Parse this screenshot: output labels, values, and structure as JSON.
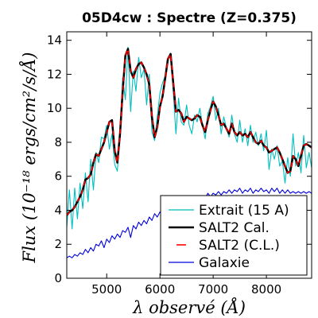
{
  "chart_data": {
    "type": "line",
    "title": "05D4cw : Spectre (Z=0.375)",
    "xlabel": "λ observé (Å)",
    "ylabel": "Flux (10⁻¹⁸ ergs/cm²/s/Å)",
    "xlim": [
      4250,
      8850
    ],
    "ylim": [
      0,
      14.5
    ],
    "xticks": [
      5000,
      6000,
      7000,
      8000
    ],
    "yticks": [
      0,
      2,
      4,
      6,
      8,
      10,
      12,
      14
    ],
    "grid": false,
    "legend_position": "bottom-right",
    "series": [
      {
        "name": "Extrait (15 A)",
        "color": "#00bfbf",
        "style": "solid",
        "x": [
          4250,
          4300,
          4350,
          4400,
          4450,
          4500,
          4550,
          4600,
          4650,
          4700,
          4750,
          4800,
          4850,
          4900,
          4950,
          5000,
          5050,
          5100,
          5150,
          5200,
          5250,
          5300,
          5350,
          5400,
          5450,
          5500,
          5550,
          5600,
          5650,
          5700,
          5750,
          5800,
          5850,
          5900,
          5950,
          6000,
          6050,
          6100,
          6150,
          6200,
          6250,
          6300,
          6350,
          6400,
          6450,
          6500,
          6550,
          6600,
          6650,
          6700,
          6750,
          6800,
          6850,
          6900,
          6950,
          7000,
          7050,
          7100,
          7150,
          7200,
          7250,
          7300,
          7350,
          7400,
          7450,
          7500,
          7550,
          7600,
          7650,
          7700,
          7750,
          7800,
          7850,
          7900,
          7950,
          8000,
          8050,
          8100,
          8150,
          8200,
          8250,
          8300,
          8350,
          8400,
          8450,
          8500,
          8550,
          8600,
          8650,
          8700,
          8750,
          8800,
          8850
        ],
        "y": [
          3.0,
          5.2,
          2.9,
          5.3,
          3.5,
          5.6,
          4.1,
          6.2,
          4.5,
          7.0,
          5.2,
          7.4,
          6.8,
          8.3,
          8.2,
          9.0,
          7.6,
          8.5,
          6.7,
          6.3,
          8.6,
          11.8,
          10.5,
          13.6,
          9.8,
          12.2,
          11.0,
          13.0,
          11.8,
          12.3,
          10.2,
          12.0,
          8.6,
          8.1,
          9.5,
          10.9,
          11.5,
          11.9,
          12.8,
          13.2,
          11.0,
          8.5,
          10.6,
          9.2,
          9.0,
          10.2,
          9.0,
          8.5,
          9.6,
          9.2,
          10.0,
          9.0,
          8.2,
          9.7,
          10.1,
          10.7,
          9.3,
          10.0,
          8.5,
          9.5,
          8.8,
          8.3,
          9.6,
          8.5,
          8.0,
          9.3,
          8.0,
          8.8,
          7.8,
          9.0,
          8.0,
          8.6,
          7.8,
          8.5,
          7.5,
          8.7,
          6.4,
          7.6,
          7.0,
          7.8,
          6.6,
          6.9,
          5.6,
          7.1,
          6.0,
          8.5,
          6.6,
          7.4,
          6.2,
          8.4,
          6.5,
          7.4,
          6.5
        ]
      },
      {
        "name": "SALT2 Cal.",
        "color": "#000000",
        "style": "solid",
        "x": [
          4250,
          4300,
          4350,
          4400,
          4450,
          4500,
          4550,
          4600,
          4650,
          4700,
          4750,
          4800,
          4850,
          4900,
          4950,
          5000,
          5050,
          5100,
          5150,
          5200,
          5250,
          5300,
          5350,
          5400,
          5450,
          5500,
          5550,
          5600,
          5650,
          5700,
          5750,
          5800,
          5850,
          5900,
          5950,
          6000,
          6050,
          6100,
          6150,
          6200,
          6250,
          6300,
          6350,
          6400,
          6450,
          6500,
          6550,
          6600,
          6650,
          6700,
          6750,
          6800,
          6850,
          6900,
          6950,
          7000,
          7050,
          7100,
          7150,
          7200,
          7250,
          7300,
          7350,
          7400,
          7450,
          7500,
          7550,
          7600,
          7650,
          7700,
          7750,
          7800,
          7850,
          7900,
          7950,
          8000,
          8050,
          8100,
          8150,
          8200,
          8250,
          8300,
          8350,
          8400,
          8450,
          8500,
          8550,
          8600,
          8650,
          8700,
          8750,
          8800,
          8850
        ],
        "y": [
          3.7,
          3.9,
          4.0,
          4.2,
          4.5,
          4.8,
          5.2,
          5.8,
          5.9,
          6.1,
          6.8,
          7.3,
          7.2,
          7.6,
          8.0,
          8.6,
          9.2,
          9.3,
          7.5,
          6.8,
          8.5,
          11.0,
          13.1,
          13.5,
          12.2,
          11.8,
          12.3,
          12.6,
          12.7,
          12.4,
          12.0,
          11.4,
          9.5,
          8.3,
          8.9,
          10.1,
          10.7,
          11.8,
          12.9,
          13.2,
          11.5,
          9.8,
          9.9,
          9.7,
          9.2,
          9.5,
          9.4,
          9.3,
          9.4,
          9.6,
          9.5,
          9.0,
          8.6,
          9.3,
          9.9,
          10.4,
          10.1,
          9.6,
          9.0,
          9.1,
          8.8,
          8.5,
          9.1,
          8.6,
          8.4,
          8.6,
          8.4,
          8.5,
          8.3,
          8.6,
          8.3,
          8.0,
          7.9,
          8.1,
          7.8,
          7.7,
          7.4,
          7.5,
          7.6,
          7.7,
          7.4,
          7.0,
          6.6,
          6.2,
          6.3,
          7.2,
          7.0,
          6.6,
          7.2,
          7.8,
          7.9,
          7.8,
          7.7
        ]
      },
      {
        "name": "SALT2 (C.L.)",
        "color": "#ff0000",
        "style": "dashed",
        "x": [
          4250,
          4300,
          4350,
          4400,
          4450,
          4500,
          4550,
          4600,
          4650,
          4700,
          4750,
          4800,
          4850,
          4900,
          4950,
          5000,
          5050,
          5100,
          5150,
          5200,
          5250,
          5300,
          5350,
          5400,
          5450,
          5500,
          5550,
          5600,
          5650,
          5700,
          5750,
          5800,
          5850,
          5900,
          5950,
          6000,
          6050,
          6100,
          6150,
          6200,
          6250,
          6300,
          6350,
          6400,
          6450,
          6500,
          6550,
          6600,
          6650,
          6700,
          6750,
          6800,
          6850,
          6900,
          6950,
          7000,
          7050,
          7100,
          7150,
          7200,
          7250,
          7300,
          7350,
          7400,
          7450,
          7500,
          7550,
          7600,
          7650,
          7700,
          7750,
          7800,
          7850,
          7900,
          7950,
          8000,
          8050,
          8100,
          8150,
          8200,
          8250,
          8300,
          8350,
          8400,
          8450,
          8500,
          8550,
          8600,
          8650,
          8700,
          8750,
          8800,
          8850
        ],
        "y": [
          3.7,
          3.9,
          4.0,
          4.2,
          4.5,
          4.8,
          5.2,
          5.8,
          5.9,
          6.1,
          6.8,
          7.3,
          7.2,
          7.6,
          8.0,
          8.6,
          9.2,
          9.3,
          7.5,
          6.8,
          8.5,
          11.0,
          13.1,
          13.5,
          12.2,
          11.8,
          12.3,
          12.6,
          12.7,
          12.4,
          12.0,
          11.4,
          9.5,
          8.3,
          8.9,
          10.1,
          10.7,
          11.8,
          12.9,
          13.2,
          11.5,
          9.8,
          9.9,
          9.7,
          9.2,
          9.5,
          9.4,
          9.3,
          9.4,
          9.6,
          9.5,
          9.0,
          8.6,
          9.3,
          9.9,
          10.4,
          10.1,
          9.6,
          9.0,
          9.1,
          8.8,
          8.5,
          9.1,
          8.6,
          8.4,
          8.6,
          8.4,
          8.5,
          8.3,
          8.6,
          8.3,
          8.0,
          7.9,
          8.1,
          7.8,
          7.7,
          7.4,
          7.5,
          7.6,
          7.7,
          7.4,
          7.0,
          6.6,
          6.2,
          6.3,
          7.2,
          7.0,
          6.6,
          7.2,
          7.8,
          7.9,
          7.8,
          7.7
        ]
      },
      {
        "name": "Galaxie",
        "color": "#0000dd",
        "style": "solid",
        "x": [
          4250,
          4300,
          4350,
          4400,
          4450,
          4500,
          4550,
          4600,
          4650,
          4700,
          4750,
          4800,
          4850,
          4900,
          4950,
          5000,
          5050,
          5100,
          5150,
          5200,
          5250,
          5300,
          5350,
          5400,
          5450,
          5500,
          5550,
          5600,
          5650,
          5700,
          5750,
          5800,
          5850,
          5900,
          5950,
          6000,
          6050,
          6100,
          6150,
          6200,
          6250,
          6300,
          6350,
          6400,
          6450,
          6500,
          6550,
          6600,
          6650,
          6700,
          6750,
          6800,
          6850,
          6900,
          6950,
          7000,
          7050,
          7100,
          7150,
          7200,
          7250,
          7300,
          7350,
          7400,
          7450,
          7500,
          7550,
          7600,
          7650,
          7700,
          7750,
          7800,
          7850,
          7900,
          7950,
          8000,
          8050,
          8100,
          8150,
          8200,
          8250,
          8300,
          8350,
          8400,
          8450,
          8500,
          8550,
          8600,
          8650,
          8700,
          8750,
          8800,
          8850
        ],
        "y": [
          1.2,
          1.3,
          1.2,
          1.4,
          1.3,
          1.5,
          1.4,
          1.7,
          1.5,
          1.8,
          1.6,
          2.0,
          1.9,
          2.2,
          1.8,
          2.3,
          2.1,
          2.5,
          2.3,
          2.6,
          2.4,
          2.8,
          2.7,
          3.0,
          2.4,
          3.1,
          2.9,
          3.3,
          3.1,
          3.4,
          3.2,
          3.6,
          3.4,
          3.8,
          3.6,
          3.9,
          3.7,
          4.1,
          3.9,
          4.3,
          4.0,
          4.4,
          4.2,
          4.5,
          4.3,
          4.6,
          4.4,
          4.7,
          4.5,
          4.8,
          4.6,
          4.8,
          4.7,
          5.0,
          4.8,
          5.0,
          4.9,
          5.1,
          4.9,
          5.1,
          5.0,
          5.2,
          5.0,
          5.2,
          5.1,
          5.3,
          5.0,
          5.2,
          5.1,
          5.3,
          5.0,
          5.2,
          5.1,
          5.3,
          5.1,
          5.2,
          5.0,
          5.3,
          5.1,
          5.3,
          5.0,
          5.2,
          5.0,
          5.2,
          5.0,
          5.1,
          5.0,
          5.1,
          5.0,
          5.1,
          5.0,
          5.1,
          5.0
        ]
      }
    ]
  }
}
